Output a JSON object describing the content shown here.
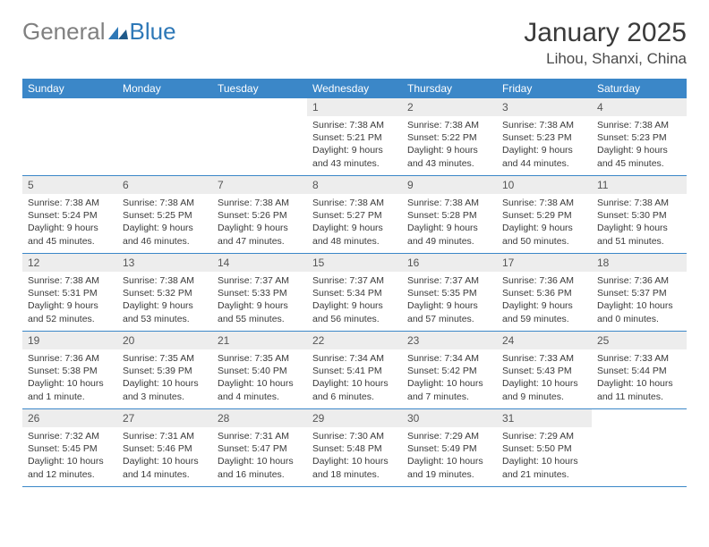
{
  "logo": {
    "text_gray": "General",
    "text_blue": "Blue"
  },
  "title": "January 2025",
  "location": "Lihou, Shanxi, China",
  "colors": {
    "header_bg": "#3b87c8",
    "header_text": "#ffffff",
    "daynum_bg": "#ededed",
    "daynum_text": "#555555",
    "body_text": "#3a3a3a",
    "logo_gray": "#808080",
    "logo_blue": "#2e78b7",
    "border": "#3b87c8",
    "page_bg": "#ffffff"
  },
  "typography": {
    "title_fontsize": 30,
    "location_fontsize": 17,
    "logo_fontsize": 26,
    "dayheader_fontsize": 12,
    "daynum_fontsize": 12,
    "daydata_fontsize": 10.5
  },
  "day_headers": [
    "Sunday",
    "Monday",
    "Tuesday",
    "Wednesday",
    "Thursday",
    "Friday",
    "Saturday"
  ],
  "weeks": [
    [
      null,
      null,
      null,
      {
        "n": "1",
        "sr": "7:38 AM",
        "ss": "5:21 PM",
        "dl": "9 hours and 43 minutes."
      },
      {
        "n": "2",
        "sr": "7:38 AM",
        "ss": "5:22 PM",
        "dl": "9 hours and 43 minutes."
      },
      {
        "n": "3",
        "sr": "7:38 AM",
        "ss": "5:23 PM",
        "dl": "9 hours and 44 minutes."
      },
      {
        "n": "4",
        "sr": "7:38 AM",
        "ss": "5:23 PM",
        "dl": "9 hours and 45 minutes."
      }
    ],
    [
      {
        "n": "5",
        "sr": "7:38 AM",
        "ss": "5:24 PM",
        "dl": "9 hours and 45 minutes."
      },
      {
        "n": "6",
        "sr": "7:38 AM",
        "ss": "5:25 PM",
        "dl": "9 hours and 46 minutes."
      },
      {
        "n": "7",
        "sr": "7:38 AM",
        "ss": "5:26 PM",
        "dl": "9 hours and 47 minutes."
      },
      {
        "n": "8",
        "sr": "7:38 AM",
        "ss": "5:27 PM",
        "dl": "9 hours and 48 minutes."
      },
      {
        "n": "9",
        "sr": "7:38 AM",
        "ss": "5:28 PM",
        "dl": "9 hours and 49 minutes."
      },
      {
        "n": "10",
        "sr": "7:38 AM",
        "ss": "5:29 PM",
        "dl": "9 hours and 50 minutes."
      },
      {
        "n": "11",
        "sr": "7:38 AM",
        "ss": "5:30 PM",
        "dl": "9 hours and 51 minutes."
      }
    ],
    [
      {
        "n": "12",
        "sr": "7:38 AM",
        "ss": "5:31 PM",
        "dl": "9 hours and 52 minutes."
      },
      {
        "n": "13",
        "sr": "7:38 AM",
        "ss": "5:32 PM",
        "dl": "9 hours and 53 minutes."
      },
      {
        "n": "14",
        "sr": "7:37 AM",
        "ss": "5:33 PM",
        "dl": "9 hours and 55 minutes."
      },
      {
        "n": "15",
        "sr": "7:37 AM",
        "ss": "5:34 PM",
        "dl": "9 hours and 56 minutes."
      },
      {
        "n": "16",
        "sr": "7:37 AM",
        "ss": "5:35 PM",
        "dl": "9 hours and 57 minutes."
      },
      {
        "n": "17",
        "sr": "7:36 AM",
        "ss": "5:36 PM",
        "dl": "9 hours and 59 minutes."
      },
      {
        "n": "18",
        "sr": "7:36 AM",
        "ss": "5:37 PM",
        "dl": "10 hours and 0 minutes."
      }
    ],
    [
      {
        "n": "19",
        "sr": "7:36 AM",
        "ss": "5:38 PM",
        "dl": "10 hours and 1 minute."
      },
      {
        "n": "20",
        "sr": "7:35 AM",
        "ss": "5:39 PM",
        "dl": "10 hours and 3 minutes."
      },
      {
        "n": "21",
        "sr": "7:35 AM",
        "ss": "5:40 PM",
        "dl": "10 hours and 4 minutes."
      },
      {
        "n": "22",
        "sr": "7:34 AM",
        "ss": "5:41 PM",
        "dl": "10 hours and 6 minutes."
      },
      {
        "n": "23",
        "sr": "7:34 AM",
        "ss": "5:42 PM",
        "dl": "10 hours and 7 minutes."
      },
      {
        "n": "24",
        "sr": "7:33 AM",
        "ss": "5:43 PM",
        "dl": "10 hours and 9 minutes."
      },
      {
        "n": "25",
        "sr": "7:33 AM",
        "ss": "5:44 PM",
        "dl": "10 hours and 11 minutes."
      }
    ],
    [
      {
        "n": "26",
        "sr": "7:32 AM",
        "ss": "5:45 PM",
        "dl": "10 hours and 12 minutes."
      },
      {
        "n": "27",
        "sr": "7:31 AM",
        "ss": "5:46 PM",
        "dl": "10 hours and 14 minutes."
      },
      {
        "n": "28",
        "sr": "7:31 AM",
        "ss": "5:47 PM",
        "dl": "10 hours and 16 minutes."
      },
      {
        "n": "29",
        "sr": "7:30 AM",
        "ss": "5:48 PM",
        "dl": "10 hours and 18 minutes."
      },
      {
        "n": "30",
        "sr": "7:29 AM",
        "ss": "5:49 PM",
        "dl": "10 hours and 19 minutes."
      },
      {
        "n": "31",
        "sr": "7:29 AM",
        "ss": "5:50 PM",
        "dl": "10 hours and 21 minutes."
      },
      null
    ]
  ],
  "labels": {
    "sunrise": "Sunrise:",
    "sunset": "Sunset:",
    "daylight": "Daylight:"
  }
}
